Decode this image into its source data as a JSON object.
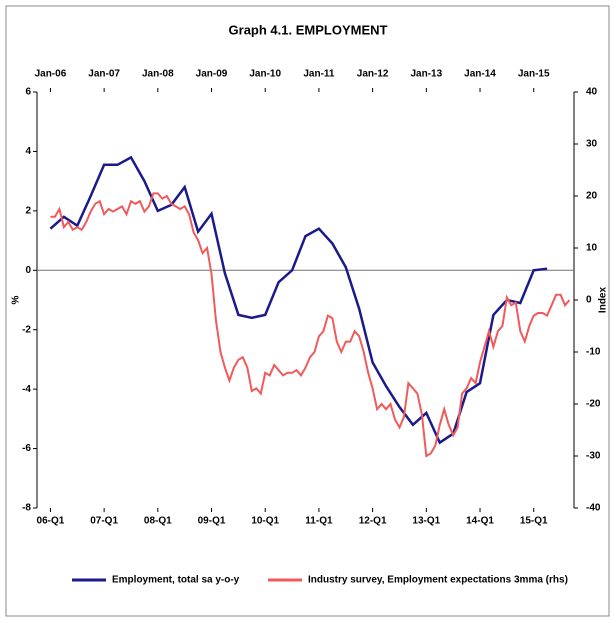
{
  "chart_data": {
    "type": "line",
    "title": "Graph 4.1. EMPLOYMENT",
    "ylabel": "%",
    "y2label": "Index",
    "xlim": [
      "05-Q4",
      "15-Q4"
    ],
    "xticks": [
      "06-Q1",
      "07-Q1",
      "08-Q1",
      "09-Q1",
      "10-Q1",
      "11-Q1",
      "12-Q1",
      "13-Q1",
      "14-Q1",
      "15-Q1"
    ],
    "x2ticks": [
      "Jan-06",
      "Jan-07",
      "Jan-08",
      "Jan-09",
      "Jan-10",
      "Jan-11",
      "Jan-12",
      "Jan-13",
      "Jan-14",
      "Jan-15"
    ],
    "ylim": [
      -8,
      6
    ],
    "yticks": [
      -8,
      -6,
      -4,
      -2,
      0,
      2,
      4,
      6
    ],
    "y2lim": [
      -40,
      40
    ],
    "y2ticks": [
      -40,
      -30,
      -20,
      -10,
      0,
      10,
      20,
      30,
      40
    ],
    "series": [
      {
        "name": "Employment, total sa y-o-y",
        "color": "#1a1a8c",
        "x": [
          "06-Q1",
          "06-Q2",
          "06-Q3",
          "06-Q4",
          "07-Q1",
          "07-Q2",
          "07-Q3",
          "07-Q4",
          "08-Q1",
          "08-Q2",
          "08-Q3",
          "08-Q4",
          "09-Q1",
          "09-Q2",
          "09-Q3",
          "09-Q4",
          "10-Q1",
          "10-Q2",
          "10-Q3",
          "10-Q4",
          "11-Q1",
          "11-Q2",
          "11-Q3",
          "11-Q4",
          "12-Q1",
          "12-Q2",
          "12-Q3",
          "12-Q4",
          "13-Q1",
          "13-Q2",
          "13-Q3",
          "13-Q4",
          "14-Q1",
          "14-Q2",
          "14-Q3",
          "14-Q4",
          "15-Q1",
          "15-Q2"
        ],
        "values": [
          1.4,
          1.8,
          1.5,
          2.5,
          3.55,
          3.55,
          3.8,
          3.0,
          2.0,
          2.2,
          2.8,
          1.3,
          1.9,
          -0.1,
          -1.5,
          -1.6,
          -1.5,
          -0.4,
          0.0,
          1.15,
          1.4,
          0.9,
          0.1,
          -1.3,
          -3.1,
          -3.9,
          -4.6,
          -5.2,
          -4.8,
          -5.8,
          -5.5,
          -4.1,
          -3.8,
          -1.5,
          -1.0,
          -1.1,
          0.0,
          0.05
        ]
      },
      {
        "name": "Industry survey, Employment expectations 3mma (rhs)",
        "color": "#f05a5a",
        "axis": "y2",
        "x": [
          "Jan-06",
          "Feb-06",
          "Mar-06",
          "Apr-06",
          "May-06",
          "Jun-06",
          "Jul-06",
          "Aug-06",
          "Sep-06",
          "Oct-06",
          "Nov-06",
          "Dec-06",
          "Jan-07",
          "Feb-07",
          "Mar-07",
          "Apr-07",
          "May-07",
          "Jun-07",
          "Jul-07",
          "Aug-07",
          "Sep-07",
          "Oct-07",
          "Nov-07",
          "Dec-07",
          "Jan-08",
          "Feb-08",
          "Mar-08",
          "Apr-08",
          "May-08",
          "Jun-08",
          "Jul-08",
          "Aug-08",
          "Sep-08",
          "Oct-08",
          "Nov-08",
          "Dec-08",
          "Jan-09",
          "Feb-09",
          "Mar-09",
          "Apr-09",
          "May-09",
          "Jun-09",
          "Jul-09",
          "Aug-09",
          "Sep-09",
          "Oct-09",
          "Nov-09",
          "Dec-09",
          "Jan-10",
          "Feb-10",
          "Mar-10",
          "Apr-10",
          "May-10",
          "Jun-10",
          "Jul-10",
          "Aug-10",
          "Sep-10",
          "Oct-10",
          "Nov-10",
          "Dec-10",
          "Jan-11",
          "Feb-11",
          "Mar-11",
          "Apr-11",
          "May-11",
          "Jun-11",
          "Jul-11",
          "Aug-11",
          "Sep-11",
          "Oct-11",
          "Nov-11",
          "Dec-11",
          "Jan-12",
          "Feb-12",
          "Mar-12",
          "Apr-12",
          "May-12",
          "Jun-12",
          "Jul-12",
          "Aug-12",
          "Sep-12",
          "Oct-12",
          "Nov-12",
          "Dec-12",
          "Jan-13",
          "Feb-13",
          "Mar-13",
          "Apr-13",
          "May-13",
          "Jun-13",
          "Jul-13",
          "Aug-13",
          "Sep-13",
          "Oct-13",
          "Nov-13",
          "Dec-13",
          "Jan-14",
          "Feb-14",
          "Mar-14",
          "Apr-14",
          "May-14",
          "Jun-14",
          "Jul-14",
          "Aug-14",
          "Sep-14",
          "Oct-14",
          "Nov-14",
          "Dec-14",
          "Jan-15",
          "Feb-15",
          "Mar-15",
          "Apr-15",
          "May-15",
          "Jun-15",
          "Jul-15",
          "Aug-15",
          "Sep-15"
        ],
        "values": [
          16,
          16,
          17.5,
          14,
          15,
          13.5,
          14,
          13.5,
          15,
          17,
          18.5,
          19,
          16.5,
          17.5,
          17,
          17.5,
          18,
          16.5,
          19,
          18.5,
          19,
          17,
          18,
          20.5,
          20.5,
          19.5,
          20,
          18.5,
          18,
          17.5,
          18,
          16.5,
          13,
          11.5,
          9,
          10,
          5,
          -4,
          -10,
          -13,
          -15.5,
          -13,
          -11.5,
          -11,
          -13,
          -17.5,
          -17,
          -18,
          -14,
          -14.5,
          -12.5,
          -13.5,
          -14.5,
          -14,
          -14,
          -13.5,
          -14.5,
          -13,
          -11,
          -10,
          -7,
          -6,
          -3,
          -3.5,
          -8,
          -10,
          -8,
          -8,
          -6,
          -7,
          -10,
          -14,
          -17,
          -21,
          -20,
          -21,
          -20,
          -23,
          -24.5,
          -22.5,
          -16,
          -17,
          -18,
          -22,
          -30,
          -29.5,
          -28,
          -24,
          -21,
          -24,
          -26,
          -24.5,
          -18,
          -17,
          -15,
          -16,
          -12,
          -9,
          -6,
          -9,
          -6,
          -5,
          0.5,
          -1,
          -0.5,
          -6,
          -8,
          -5,
          -3,
          -2.5,
          -2.5,
          -3,
          -1,
          1,
          1,
          -1,
          0
        ]
      }
    ]
  }
}
